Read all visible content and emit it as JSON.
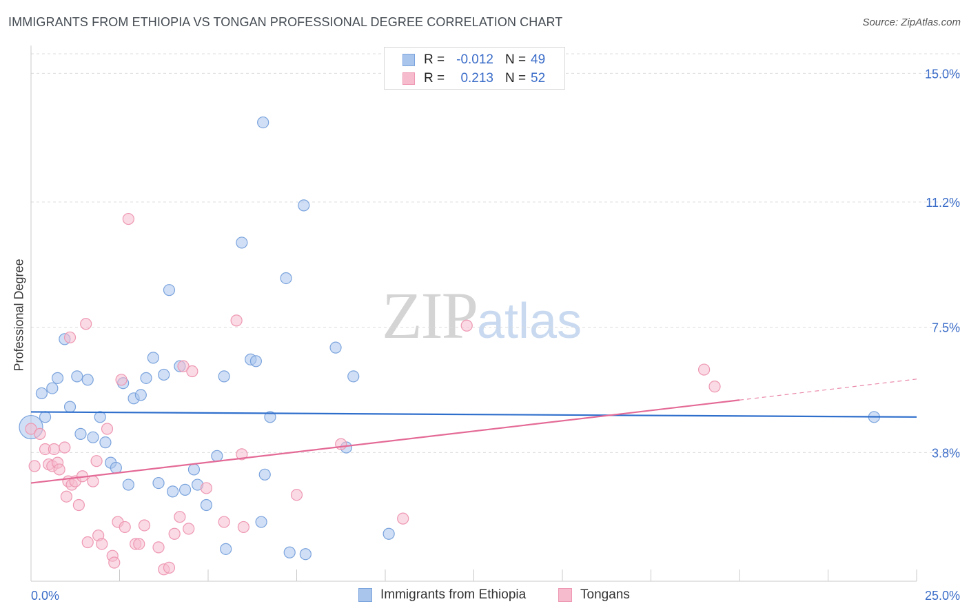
{
  "header": {
    "title": "IMMIGRANTS FROM ETHIOPIA VS TONGAN PROFESSIONAL DEGREE CORRELATION CHART",
    "source": "Source: ZipAtlas.com"
  },
  "watermark": {
    "zip": "ZIP",
    "atlas": "atlas"
  },
  "legend_stats": [
    {
      "r_label": "R =",
      "r_value": "-0.012",
      "n_label": "N =",
      "n_value": "49"
    },
    {
      "r_label": "R =",
      "r_value": "0.213",
      "n_label": "N =",
      "n_value": "52"
    }
  ],
  "colors": {
    "ethiopia_fill": "#a9c5ec",
    "ethiopia_stroke": "#7aa3dd",
    "ethiopia_line": "#2f6fcc",
    "tongan_fill": "#f6bccd",
    "tongan_stroke": "#ee97b2",
    "tongan_line": "#e46a96",
    "tick_label": "#3a6cc8",
    "grid": "#dcdcdc"
  },
  "chart_data": {
    "type": "scatter",
    "title": "IMMIGRANTS FROM ETHIOPIA VS TONGAN PROFESSIONAL DEGREE CORRELATION CHART",
    "xlabel": "",
    "ylabel": "Professional Degree",
    "xlim": [
      0,
      25
    ],
    "ylim": [
      0,
      15.7
    ],
    "x_tick_labels": [
      "0.0%",
      "25.0%"
    ],
    "y_ticks": [
      3.8,
      7.5,
      11.2,
      15.0
    ],
    "y_tick_labels": [
      "3.8%",
      "7.5%",
      "11.2%",
      "15.0%"
    ],
    "grid": "horizontal dashed",
    "legend_position": "top-center",
    "series": [
      {
        "name": "Immigrants from Ethiopia",
        "trend": {
          "x0": 0,
          "y0": 5.0,
          "x1": 25,
          "y1": 4.85
        },
        "points": [
          [
            0.0,
            4.55
          ],
          [
            0.3,
            5.55
          ],
          [
            0.4,
            4.85
          ],
          [
            0.6,
            5.7
          ],
          [
            0.75,
            6.0
          ],
          [
            0.95,
            7.15
          ],
          [
            1.1,
            5.15
          ],
          [
            1.3,
            6.05
          ],
          [
            1.4,
            4.35
          ],
          [
            1.6,
            5.95
          ],
          [
            1.75,
            4.25
          ],
          [
            1.95,
            4.85
          ],
          [
            2.1,
            4.1
          ],
          [
            2.25,
            3.5
          ],
          [
            2.4,
            3.35
          ],
          [
            2.6,
            5.85
          ],
          [
            2.75,
            2.85
          ],
          [
            2.9,
            5.4
          ],
          [
            3.1,
            5.5
          ],
          [
            3.25,
            6.0
          ],
          [
            3.45,
            6.6
          ],
          [
            3.6,
            2.9
          ],
          [
            3.75,
            6.1
          ],
          [
            3.9,
            8.6
          ],
          [
            4.0,
            2.65
          ],
          [
            4.2,
            6.35
          ],
          [
            4.35,
            2.7
          ],
          [
            4.6,
            3.3
          ],
          [
            4.7,
            2.85
          ],
          [
            4.95,
            2.25
          ],
          [
            5.25,
            3.7
          ],
          [
            5.45,
            6.05
          ],
          [
            5.5,
            0.95
          ],
          [
            5.95,
            10.0
          ],
          [
            6.2,
            6.55
          ],
          [
            6.35,
            6.5
          ],
          [
            6.5,
            1.75
          ],
          [
            6.55,
            13.55
          ],
          [
            6.6,
            3.15
          ],
          [
            6.75,
            4.85
          ],
          [
            7.2,
            8.95
          ],
          [
            7.3,
            0.85
          ],
          [
            7.75,
            0.8
          ],
          [
            7.7,
            11.1
          ],
          [
            8.6,
            6.9
          ],
          [
            8.9,
            3.95
          ],
          [
            9.1,
            6.05
          ],
          [
            10.1,
            1.4
          ],
          [
            23.8,
            4.85
          ]
        ]
      },
      {
        "name": "Tongans",
        "trend": {
          "x0": 0,
          "y0": 2.9,
          "x1": 20.0,
          "y1": 5.35,
          "dash_to_x": 25,
          "dash_to_y": 5.97
        },
        "points": [
          [
            0.0,
            4.5
          ],
          [
            0.1,
            3.4
          ],
          [
            0.25,
            4.35
          ],
          [
            0.4,
            3.9
          ],
          [
            0.5,
            3.45
          ],
          [
            0.6,
            3.4
          ],
          [
            0.65,
            3.9
          ],
          [
            0.75,
            3.5
          ],
          [
            0.8,
            3.3
          ],
          [
            0.95,
            3.95
          ],
          [
            1.0,
            2.5
          ],
          [
            1.05,
            2.95
          ],
          [
            1.1,
            7.2
          ],
          [
            1.15,
            2.85
          ],
          [
            1.25,
            2.95
          ],
          [
            1.35,
            2.25
          ],
          [
            1.45,
            3.1
          ],
          [
            1.55,
            7.6
          ],
          [
            1.6,
            1.15
          ],
          [
            1.75,
            2.95
          ],
          [
            1.85,
            3.55
          ],
          [
            1.9,
            1.35
          ],
          [
            2.0,
            1.1
          ],
          [
            2.15,
            4.5
          ],
          [
            2.3,
            0.75
          ],
          [
            2.35,
            0.55
          ],
          [
            2.45,
            1.75
          ],
          [
            2.55,
            5.95
          ],
          [
            2.65,
            1.6
          ],
          [
            2.75,
            10.7
          ],
          [
            2.95,
            1.1
          ],
          [
            3.05,
            1.1
          ],
          [
            3.2,
            1.65
          ],
          [
            3.6,
            1.0
          ],
          [
            3.75,
            0.35
          ],
          [
            3.9,
            0.4
          ],
          [
            4.05,
            1.4
          ],
          [
            4.2,
            1.9
          ],
          [
            4.3,
            6.35
          ],
          [
            4.45,
            1.55
          ],
          [
            4.55,
            6.2
          ],
          [
            4.95,
            2.75
          ],
          [
            5.45,
            1.75
          ],
          [
            5.8,
            7.7
          ],
          [
            5.95,
            3.75
          ],
          [
            6.0,
            1.6
          ],
          [
            7.5,
            2.55
          ],
          [
            8.75,
            4.05
          ],
          [
            10.5,
            1.85
          ],
          [
            12.3,
            7.55
          ],
          [
            19.0,
            6.25
          ],
          [
            19.3,
            5.75
          ]
        ]
      }
    ]
  },
  "bottom_legend": [
    {
      "label": "Immigrants from Ethiopia"
    },
    {
      "label": "Tongans"
    }
  ]
}
